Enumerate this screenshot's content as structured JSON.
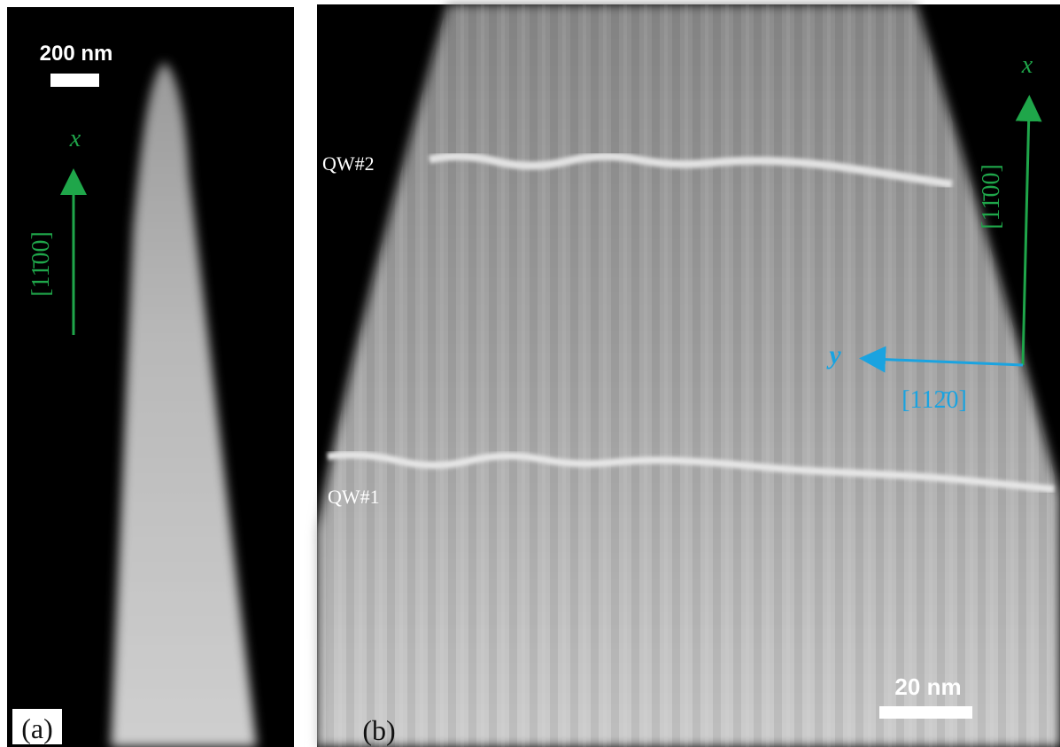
{
  "panels": [
    {
      "label": "(a)",
      "scale_bar": "200 nm",
      "axes": {
        "x": {
          "symbol": "x",
          "direction": "[11̄00]"
        }
      }
    },
    {
      "label": "(b)",
      "scale_bar": "20 nm",
      "quantum_wells": [
        "QW#2",
        "QW#1"
      ],
      "axes": {
        "x": {
          "symbol": "x",
          "direction": "[11̄00]"
        },
        "y": {
          "symbol": "y",
          "direction": "[112̄0]"
        }
      }
    }
  ]
}
